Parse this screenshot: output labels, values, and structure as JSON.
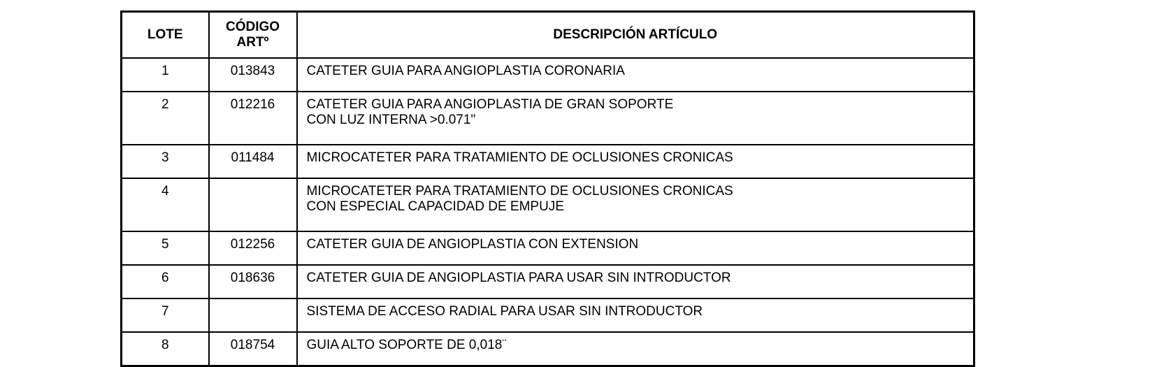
{
  "table": {
    "headers": {
      "lote": "LOTE",
      "codigo_1": "CÓDIGO",
      "codigo_2": "ARTº",
      "descripcion": "DESCRIPCIÓN ARTÍCULO"
    },
    "rows": [
      {
        "lote": "1",
        "codigo": "013843",
        "desc": [
          "CATETER GUIA PARA ANGIOPLASTIA CORONARIA"
        ]
      },
      {
        "lote": "2",
        "codigo": "012216",
        "desc": [
          "CATETER GUIA PARA ANGIOPLASTIA DE GRAN SOPORTE",
          "CON LUZ INTERNA >0.071\""
        ]
      },
      {
        "lote": "3",
        "codigo": "011484",
        "desc": [
          "MICROCATETER PARA TRATAMIENTO DE OCLUSIONES CRONICAS"
        ]
      },
      {
        "lote": "4",
        "codigo": "",
        "desc": [
          "MICROCATETER PARA TRATAMIENTO DE OCLUSIONES CRONICAS",
          "CON ESPECIAL CAPACIDAD DE EMPUJE"
        ]
      },
      {
        "lote": "5",
        "codigo": "012256",
        "desc": [
          "CATETER GUIA DE ANGIOPLASTIA CON EXTENSION"
        ]
      },
      {
        "lote": "6",
        "codigo": "018636",
        "desc": [
          "CATETER GUIA DE ANGIOPLASTIA PARA USAR SIN INTRODUCTOR"
        ]
      },
      {
        "lote": "7",
        "codigo": "",
        "desc": [
          "SISTEMA DE ACCESO RADIAL PARA USAR SIN INTRODUCTOR"
        ]
      },
      {
        "lote": "8",
        "codigo": "018754",
        "desc": [
          "GUIA ALTO SOPORTE DE 0,018¨"
        ]
      }
    ]
  }
}
